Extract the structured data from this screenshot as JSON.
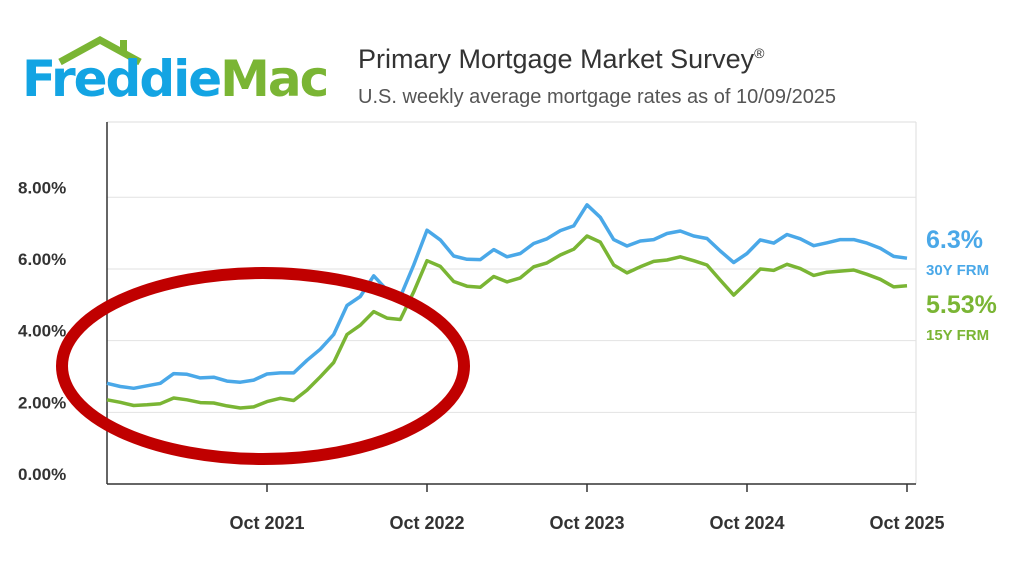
{
  "logo": {
    "part1": "Freddie",
    "part2": "Mac"
  },
  "header": {
    "title": "Primary Mortgage Market Survey",
    "title_mark": "®",
    "subtitle": "U.S. weekly average mortgage rates as of 10/09/2025"
  },
  "colors": {
    "series_30y": "#4aa8e8",
    "series_15y": "#7ab534",
    "annotation": "#c00000",
    "logo_blue": "#13a4e3",
    "logo_green": "#7ab534"
  },
  "chart_data": {
    "type": "line",
    "title": "Primary Mortgage Market Survey®",
    "subtitle": "U.S. weekly average mortgage rates as of 10/09/2025",
    "xlabel": "",
    "ylabel": "",
    "x_start": "2020-10",
    "x_step": "month",
    "x_ticks": [
      "Oct 2021",
      "Oct 2022",
      "Oct 2023",
      "Oct 2024",
      "Oct 2025"
    ],
    "y_ticks": [
      "0.00%",
      "2.00%",
      "4.00%",
      "6.00%",
      "8.00%"
    ],
    "y_tick_values": [
      0,
      2,
      4,
      6,
      8
    ],
    "ylim": [
      0,
      10.1
    ],
    "grid": "horizontal",
    "series": [
      {
        "name": "30Y FRM",
        "end_label": "6.3%",
        "color": "#4aa8e8",
        "values": [
          2.81,
          2.72,
          2.67,
          2.74,
          2.81,
          3.08,
          3.06,
          2.96,
          2.98,
          2.87,
          2.84,
          2.9,
          3.07,
          3.1,
          3.1,
          3.45,
          3.76,
          4.17,
          4.98,
          5.23,
          5.81,
          5.41,
          5.22,
          6.11,
          7.08,
          6.81,
          6.36,
          6.27,
          6.26,
          6.54,
          6.34,
          6.43,
          6.71,
          6.84,
          7.07,
          7.2,
          7.79,
          7.44,
          6.82,
          6.64,
          6.78,
          6.82,
          6.99,
          7.06,
          6.92,
          6.85,
          6.5,
          6.18,
          6.43,
          6.81,
          6.72,
          6.96,
          6.84,
          6.65,
          6.73,
          6.82,
          6.82,
          6.72,
          6.58,
          6.35,
          6.3
        ]
      },
      {
        "name": "15Y FRM",
        "end_label": "5.53%",
        "color": "#7ab534",
        "values": [
          2.35,
          2.28,
          2.19,
          2.21,
          2.24,
          2.4,
          2.35,
          2.27,
          2.26,
          2.18,
          2.12,
          2.15,
          2.3,
          2.39,
          2.33,
          2.62,
          2.99,
          3.39,
          4.17,
          4.43,
          4.81,
          4.63,
          4.59,
          5.36,
          6.23,
          6.07,
          5.65,
          5.52,
          5.49,
          5.79,
          5.64,
          5.75,
          6.06,
          6.17,
          6.39,
          6.55,
          6.92,
          6.75,
          6.11,
          5.89,
          6.06,
          6.21,
          6.25,
          6.34,
          6.23,
          6.11,
          5.69,
          5.27,
          5.63,
          6.0,
          5.96,
          6.13,
          6.01,
          5.82,
          5.91,
          5.94,
          5.97,
          5.85,
          5.71,
          5.5,
          5.53
        ]
      }
    ],
    "annotations": [
      {
        "type": "ellipse",
        "color": "#c00000",
        "highlights": "Oct 2020 – Sep 2022"
      }
    ]
  }
}
